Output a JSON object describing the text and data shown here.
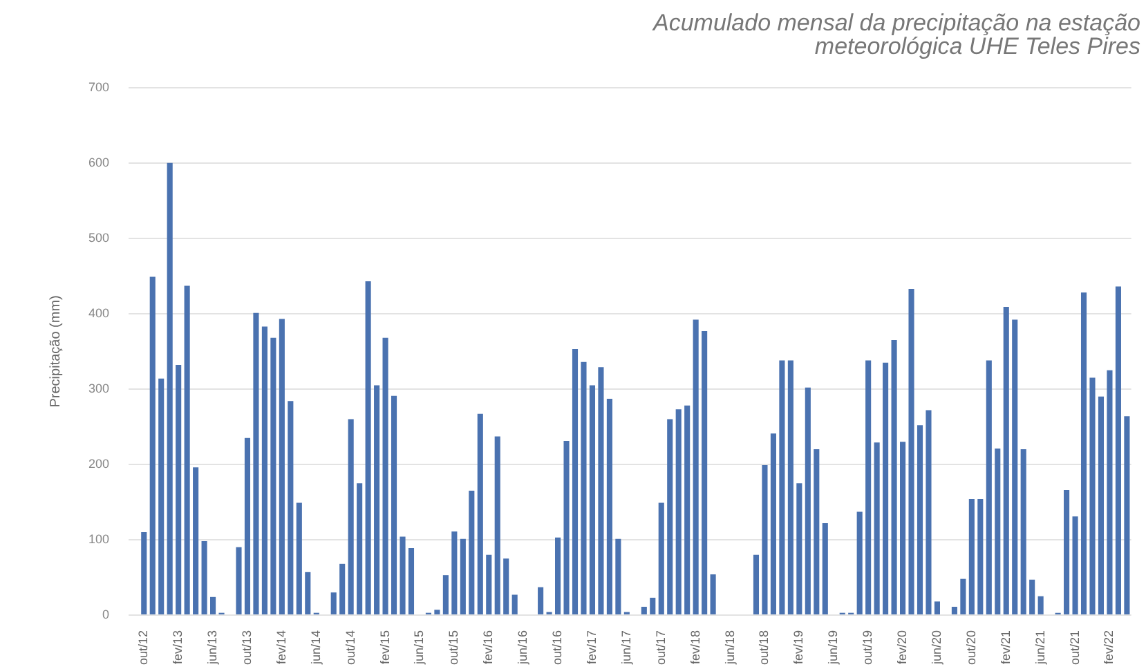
{
  "chart_data": {
    "type": "bar",
    "title": "Acumulado mensal da precipitação na estação meteorológica UHE Teles Pires",
    "ylabel": "Precipitação (mm)",
    "categories": [
      "out/12",
      null,
      null,
      null,
      "fev/13",
      null,
      null,
      null,
      "jun/13",
      null,
      null,
      null,
      "out/13",
      null,
      null,
      null,
      "fev/14",
      null,
      null,
      null,
      "jun/14",
      null,
      null,
      null,
      "out/14",
      null,
      null,
      null,
      "fev/15",
      null,
      null,
      null,
      "jun/15",
      null,
      null,
      null,
      "out/15",
      null,
      null,
      null,
      "fev/16",
      null,
      null,
      null,
      "jun/16",
      null,
      null,
      null,
      "out/16",
      null,
      null,
      null,
      "fev/17",
      null,
      null,
      null,
      "jun/17",
      null,
      null,
      null,
      "out/17",
      null,
      null,
      null,
      "fev/18",
      null,
      null,
      null,
      "jun/18",
      null,
      null,
      null,
      "out/18",
      null,
      null,
      null,
      "fev/19",
      null,
      null,
      null,
      "jun/19",
      null,
      null,
      null,
      "out/19",
      null,
      null,
      null,
      "fev/20",
      null,
      null,
      null,
      "jun/20",
      null,
      null,
      null,
      "out/20",
      null,
      null,
      null,
      "fev/21",
      null,
      null,
      null,
      "jun/21",
      null,
      null,
      null,
      "out/21",
      null,
      null,
      null,
      "fev/22",
      null,
      null
    ],
    "values": [
      110,
      449,
      314,
      600,
      332,
      437,
      196,
      98,
      24,
      3,
      0,
      90,
      235,
      401,
      383,
      368,
      393,
      284,
      149,
      57,
      3,
      0,
      30,
      68,
      260,
      175,
      443,
      305,
      368,
      291,
      104,
      89,
      0,
      3,
      7,
      53,
      111,
      101,
      165,
      267,
      80,
      237,
      75,
      27,
      0,
      0,
      37,
      4,
      103,
      231,
      353,
      336,
      305,
      329,
      287,
      101,
      4,
      0,
      11,
      23,
      149,
      260,
      273,
      278,
      392,
      377,
      54,
      0,
      0,
      0,
      0,
      80,
      199,
      241,
      338,
      338,
      175,
      302,
      220,
      122,
      0,
      3,
      3,
      137,
      338,
      229,
      335,
      365,
      230,
      433,
      252,
      272,
      18,
      0,
      11,
      48,
      154,
      154,
      338,
      221,
      409,
      392,
      220,
      47,
      25,
      0,
      3,
      166,
      131,
      428,
      315,
      290,
      325,
      436,
      264
    ],
    "color": "#4a72b0",
    "ylim": [
      0,
      700
    ],
    "yticks": [
      0,
      100,
      200,
      300,
      400,
      500,
      600,
      700
    ],
    "grid": "y"
  }
}
